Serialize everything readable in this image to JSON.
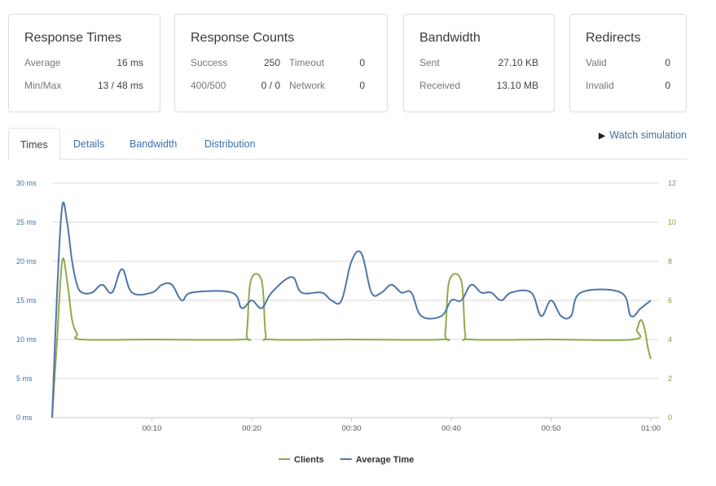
{
  "cards": {
    "response_times": {
      "title": "Response Times",
      "rows": [
        {
          "label": "Average",
          "value": "16 ms"
        },
        {
          "label": "Min/Max",
          "value": "13 / 48 ms"
        }
      ]
    },
    "response_counts": {
      "title": "Response Counts",
      "rows": [
        {
          "label": "Success",
          "value": "250",
          "label2": "Timeout",
          "value2": "0"
        },
        {
          "label": "400/500",
          "value": "0 / 0",
          "label2": "Network",
          "value2": "0"
        }
      ]
    },
    "bandwidth": {
      "title": "Bandwidth",
      "rows": [
        {
          "label": "Sent",
          "value": "27.10 KB"
        },
        {
          "label": "Received",
          "value": "13.10 MB"
        }
      ]
    },
    "redirects": {
      "title": "Redirects",
      "rows": [
        {
          "label": "Valid",
          "value": "0"
        },
        {
          "label": "Invalid",
          "value": "0"
        }
      ]
    }
  },
  "tabs": [
    "Times",
    "Details",
    "Bandwidth",
    "Distribution"
  ],
  "watch_label": "Watch simulation",
  "colors": {
    "clients": "#8faa4a",
    "average_time": "#4d76a8",
    "grid": "#d9d9d9"
  },
  "chart_data": {
    "type": "line",
    "x_unit": "seconds",
    "xlim": [
      0,
      60
    ],
    "x_ticks": [
      "00:10",
      "00:20",
      "00:30",
      "00:40",
      "00:50",
      "01:00"
    ],
    "y_left": {
      "ticks": [
        "0 ms",
        "5 ms",
        "10 ms",
        "15 ms",
        "20 ms",
        "25 ms",
        "30 ms"
      ],
      "range": [
        0,
        30
      ]
    },
    "y_right": {
      "ticks": [
        "0",
        "2",
        "4",
        "6",
        "8",
        "10",
        "12"
      ],
      "range": [
        0,
        12
      ]
    },
    "grid": true,
    "legend_position": "bottom-center",
    "series": [
      {
        "name": "Clients",
        "axis": "right",
        "color": "#8faa4a",
        "points": [
          [
            0,
            0
          ],
          [
            0.5,
            4.0
          ],
          [
            1,
            8.0
          ],
          [
            1.5,
            7.0
          ],
          [
            2,
            5.0
          ],
          [
            2.5,
            4.3
          ],
          [
            3,
            4.0
          ],
          [
            10,
            4.0
          ],
          [
            19,
            4.0
          ],
          [
            19.5,
            4.3
          ],
          [
            19.9,
            7.0
          ],
          [
            21,
            7.0
          ],
          [
            21.4,
            4.3
          ],
          [
            22,
            4.0
          ],
          [
            30,
            4.0
          ],
          [
            39,
            4.0
          ],
          [
            39.4,
            4.3
          ],
          [
            39.8,
            7.0
          ],
          [
            41,
            7.0
          ],
          [
            41.4,
            4.3
          ],
          [
            42,
            4.0
          ],
          [
            50,
            4.0
          ],
          [
            58.2,
            4.0
          ],
          [
            58.6,
            4.5
          ],
          [
            59,
            5.0
          ],
          [
            59.4,
            4.5
          ],
          [
            59.7,
            3.6
          ],
          [
            60,
            3.0
          ]
        ]
      },
      {
        "name": "Average Time",
        "axis": "left",
        "color": "#4d76a8",
        "points": [
          [
            0,
            0
          ],
          [
            0.5,
            16
          ],
          [
            1,
            27
          ],
          [
            1.5,
            25
          ],
          [
            2,
            20
          ],
          [
            2.5,
            17
          ],
          [
            3,
            16
          ],
          [
            4,
            16
          ],
          [
            5,
            17
          ],
          [
            6,
            16
          ],
          [
            7,
            19
          ],
          [
            8,
            16
          ],
          [
            10,
            16
          ],
          [
            11,
            17
          ],
          [
            12,
            17
          ],
          [
            13,
            15
          ],
          [
            14,
            16
          ],
          [
            18,
            16
          ],
          [
            19,
            14
          ],
          [
            20,
            15
          ],
          [
            21,
            14
          ],
          [
            22,
            16
          ],
          [
            24,
            18
          ],
          [
            25,
            16
          ],
          [
            27,
            16
          ],
          [
            28,
            15
          ],
          [
            29,
            15
          ],
          [
            30,
            20
          ],
          [
            31,
            21
          ],
          [
            32,
            16
          ],
          [
            33,
            16
          ],
          [
            34,
            17
          ],
          [
            35,
            16
          ],
          [
            36,
            16
          ],
          [
            37,
            13
          ],
          [
            39,
            13
          ],
          [
            40,
            15
          ],
          [
            41,
            15
          ],
          [
            42,
            17
          ],
          [
            43,
            16
          ],
          [
            44,
            16
          ],
          [
            45,
            15
          ],
          [
            46,
            16
          ],
          [
            48,
            16
          ],
          [
            49,
            13
          ],
          [
            50,
            15
          ],
          [
            51,
            13
          ],
          [
            52,
            13
          ],
          [
            53,
            16
          ],
          [
            57,
            16
          ],
          [
            58,
            13
          ],
          [
            59,
            14
          ],
          [
            60,
            15
          ]
        ]
      }
    ]
  }
}
